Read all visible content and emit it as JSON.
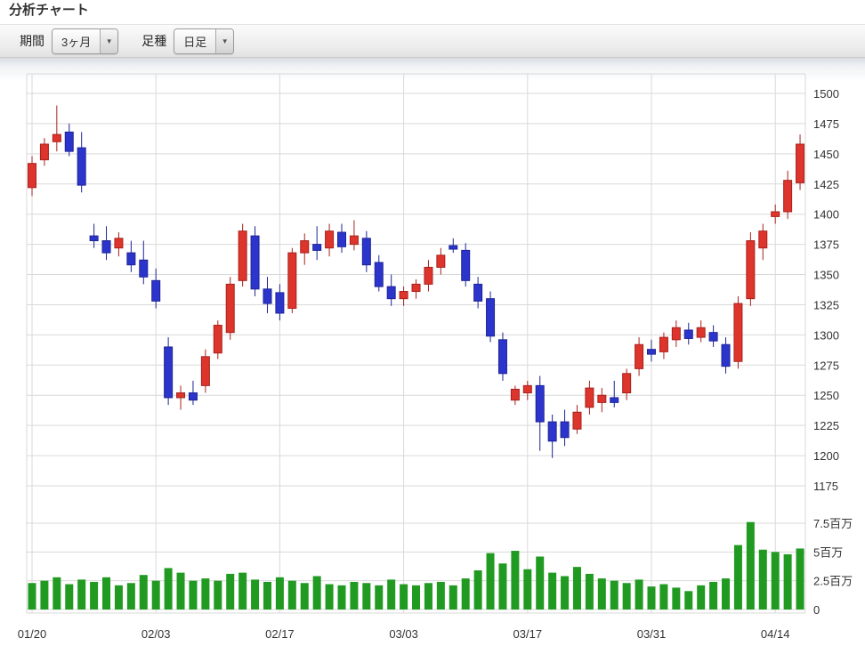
{
  "title": "分析チャート",
  "toolbar": {
    "period_label": "期間",
    "period_value": "3ヶ月",
    "candle_type_label": "足種",
    "candle_type_value": "日足",
    "dropdown_arrow": "▼"
  },
  "chart_data": {
    "type": "candlestick",
    "title": "分析チャート",
    "legend": "none",
    "grid": true,
    "price_axis": {
      "side": "right",
      "min": 1175,
      "max": 1500,
      "ticks": [
        1500,
        1475,
        1450,
        1425,
        1400,
        1375,
        1350,
        1325,
        1300,
        1275,
        1250,
        1225,
        1200,
        1175
      ]
    },
    "volume_axis": {
      "side": "right",
      "unit": "百万",
      "ticks": [
        {
          "value": 7.5,
          "label": "7.5百万"
        },
        {
          "value": 5,
          "label": "5百万"
        },
        {
          "value": 2.5,
          "label": "2.5百万"
        },
        {
          "value": 0,
          "label": "0"
        }
      ]
    },
    "x_ticks": [
      {
        "index": 0,
        "label": "01/20"
      },
      {
        "index": 10,
        "label": "02/03"
      },
      {
        "index": 20,
        "label": "02/17"
      },
      {
        "index": 30,
        "label": "03/03"
      },
      {
        "index": 40,
        "label": "03/17"
      },
      {
        "index": 50,
        "label": "03/31"
      },
      {
        "index": 60,
        "label": "04/14"
      }
    ],
    "colors": {
      "up": "#dd342c",
      "up_stroke": "#a8221c",
      "down": "#2c35cb",
      "down_stroke": "#1d2496",
      "volume": "#219a21",
      "grid": "#d9d9d9",
      "axis_text": "#333333"
    },
    "candles_note": "each candle = [open, high, low, close, volume_millions], values estimated from pixels",
    "candles": [
      [
        1422,
        1448,
        1415,
        1442,
        2.3
      ],
      [
        1445,
        1463,
        1440,
        1458,
        2.5
      ],
      [
        1460,
        1490,
        1452,
        1466,
        2.8
      ],
      [
        1468,
        1475,
        1448,
        1452,
        2.2
      ],
      [
        1455,
        1468,
        1418,
        1424,
        2.6
      ],
      [
        1382,
        1392,
        1372,
        1378,
        2.4
      ],
      [
        1378,
        1390,
        1362,
        1368,
        2.8
      ],
      [
        1372,
        1385,
        1365,
        1380,
        2.1
      ],
      [
        1368,
        1378,
        1352,
        1358,
        2.3
      ],
      [
        1362,
        1378,
        1342,
        1348,
        3.0
      ],
      [
        1345,
        1355,
        1322,
        1328,
        2.5
      ],
      [
        1290,
        1298,
        1242,
        1248,
        3.6
      ],
      [
        1248,
        1258,
        1238,
        1252,
        3.2
      ],
      [
        1252,
        1262,
        1242,
        1246,
        2.5
      ],
      [
        1258,
        1288,
        1252,
        1282,
        2.7
      ],
      [
        1285,
        1312,
        1280,
        1308,
        2.5
      ],
      [
        1302,
        1348,
        1296,
        1342,
        3.1
      ],
      [
        1345,
        1392,
        1340,
        1386,
        3.2
      ],
      [
        1382,
        1390,
        1332,
        1338,
        2.6
      ],
      [
        1338,
        1348,
        1318,
        1326,
        2.4
      ],
      [
        1335,
        1342,
        1312,
        1318,
        2.8
      ],
      [
        1322,
        1372,
        1318,
        1368,
        2.5
      ],
      [
        1368,
        1384,
        1358,
        1378,
        2.3
      ],
      [
        1375,
        1390,
        1362,
        1370,
        2.9
      ],
      [
        1372,
        1392,
        1365,
        1386,
        2.2
      ],
      [
        1385,
        1392,
        1368,
        1373,
        2.1
      ],
      [
        1375,
        1395,
        1370,
        1382,
        2.4
      ],
      [
        1380,
        1386,
        1352,
        1358,
        2.3
      ],
      [
        1360,
        1366,
        1336,
        1340,
        2.1
      ],
      [
        1340,
        1350,
        1324,
        1330,
        2.6
      ],
      [
        1330,
        1340,
        1324,
        1336,
        2.2
      ],
      [
        1336,
        1346,
        1330,
        1342,
        2.1
      ],
      [
        1342,
        1362,
        1336,
        1356,
        2.3
      ],
      [
        1356,
        1372,
        1350,
        1366,
        2.4
      ],
      [
        1374,
        1380,
        1368,
        1371,
        2.1
      ],
      [
        1370,
        1376,
        1340,
        1345,
        2.7
      ],
      [
        1342,
        1348,
        1322,
        1328,
        3.4
      ],
      [
        1330,
        1336,
        1294,
        1299,
        4.9
      ],
      [
        1296,
        1302,
        1262,
        1268,
        4.0
      ],
      [
        1246,
        1258,
        1242,
        1255,
        5.1
      ],
      [
        1252,
        1262,
        1246,
        1258,
        3.5
      ],
      [
        1258,
        1266,
        1204,
        1228,
        4.6
      ],
      [
        1228,
        1234,
        1198,
        1212,
        3.2
      ],
      [
        1228,
        1238,
        1208,
        1215,
        2.9
      ],
      [
        1222,
        1242,
        1218,
        1236,
        3.7
      ],
      [
        1240,
        1262,
        1234,
        1256,
        3.1
      ],
      [
        1244,
        1256,
        1236,
        1250,
        2.7
      ],
      [
        1248,
        1262,
        1240,
        1244,
        2.5
      ],
      [
        1252,
        1272,
        1246,
        1268,
        2.3
      ],
      [
        1272,
        1298,
        1266,
        1292,
        2.6
      ],
      [
        1288,
        1296,
        1278,
        1284,
        2.0
      ],
      [
        1286,
        1302,
        1280,
        1298,
        2.2
      ],
      [
        1296,
        1312,
        1290,
        1306,
        1.9
      ],
      [
        1304,
        1310,
        1292,
        1297,
        1.6
      ],
      [
        1298,
        1312,
        1294,
        1306,
        2.1
      ],
      [
        1302,
        1308,
        1290,
        1295,
        2.4
      ],
      [
        1292,
        1298,
        1268,
        1274,
        2.7
      ],
      [
        1278,
        1332,
        1272,
        1326,
        5.6
      ],
      [
        1330,
        1385,
        1324,
        1378,
        7.6
      ],
      [
        1372,
        1392,
        1362,
        1386,
        5.2
      ],
      [
        1398,
        1408,
        1392,
        1402,
        5.0
      ],
      [
        1402,
        1436,
        1396,
        1428,
        4.8
      ],
      [
        1426,
        1466,
        1420,
        1458,
        5.3
      ]
    ]
  }
}
